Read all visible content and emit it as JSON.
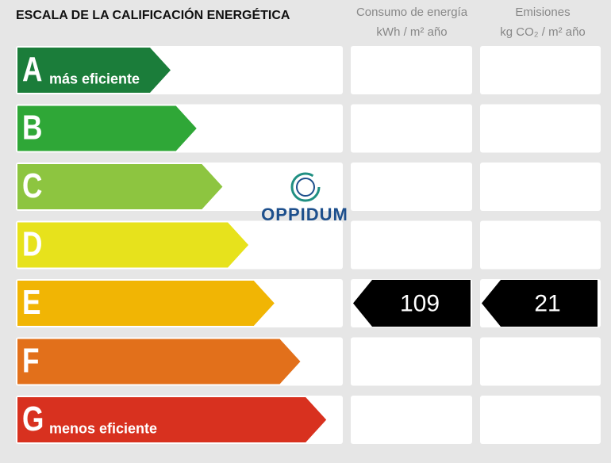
{
  "header": {
    "title": "ESCALA DE LA CALIFICACIÓN ENERGÉTICA",
    "consumption": {
      "line1": "Consumo de energía",
      "line2": "kWh / m² año"
    },
    "emissions": {
      "line1": "Emisiones",
      "line2": "kg CO₂ / m² año"
    }
  },
  "scale": [
    {
      "letter": "A",
      "note": "más eficiente",
      "color": "#1b7d3a"
    },
    {
      "letter": "B",
      "color": "#2fa737"
    },
    {
      "letter": "C",
      "color": "#8dc540"
    },
    {
      "letter": "D",
      "color": "#e7e21c"
    },
    {
      "letter": "E",
      "color": "#f1b504"
    },
    {
      "letter": "F",
      "color": "#e2701b"
    },
    {
      "letter": "G",
      "note": "menos eficiente",
      "color": "#d8311f"
    }
  ],
  "current": {
    "rating": "E",
    "consumption": 109,
    "emissions": 21
  },
  "watermark": "OPPIDUM"
}
